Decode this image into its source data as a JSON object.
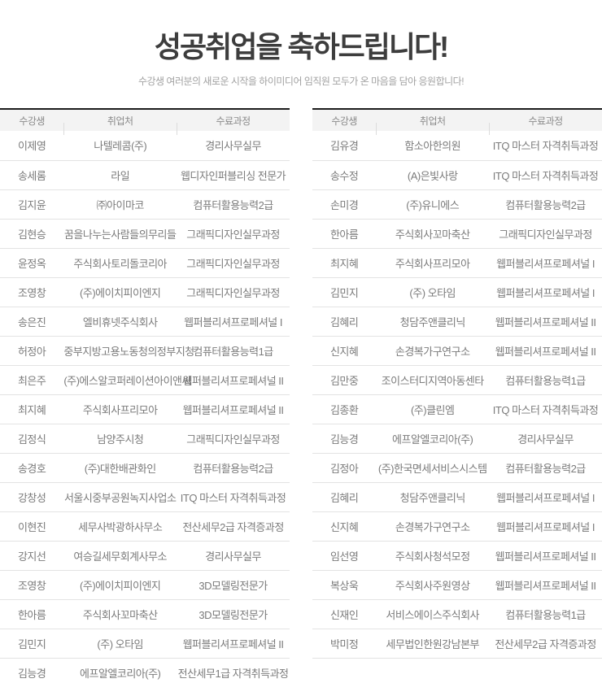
{
  "header": {
    "title": "성공취업을 축하드립니다!",
    "subtitle": "수강생 여러분의 새로운 시작을 하이미디어 임직원 모두가 온 마음을 담아 응원합니다!"
  },
  "columns": [
    "수강생",
    "취업처",
    "수료과정"
  ],
  "left_table": {
    "rows": [
      [
        "이제영",
        "나텔레콤(주)",
        "경리사무실무"
      ],
      [
        "송세롬",
        "라일",
        "웹디자인퍼블리싱 전문가"
      ],
      [
        "김지윤",
        "㈜아이마코",
        "컴퓨터활용능력2급"
      ],
      [
        "김현승",
        "꿈을나누는사람들의무리들",
        "그래픽디자인실무과정"
      ],
      [
        "윤정옥",
        "주식회사토리돌코리아",
        "그래픽디자인실무과정"
      ],
      [
        "조영창",
        "(주)에이치피이엔지",
        "그래픽디자인실무과정"
      ],
      [
        "송은진",
        "엘비휴넷주식회사",
        "웹퍼블리셔프로페셔널 I"
      ],
      [
        "허정아",
        "중부지방고용노동청의정부지청",
        "컴퓨터활용능력1급"
      ],
      [
        "최은주",
        "(주)에스알코퍼레이션아이앤씨",
        "웹퍼블리셔프로페셔널 II"
      ],
      [
        "최지혜",
        "주식회사프리모아",
        "웹퍼블리셔프로페셔널 II"
      ],
      [
        "김정식",
        "남양주시청",
        "그래픽디자인실무과정"
      ],
      [
        "송경호",
        "(주)대한배관화인",
        "컴퓨터활용능력2급"
      ],
      [
        "강창성",
        "서울시중부공원녹지사업소",
        "ITQ 마스터 자격취득과정"
      ],
      [
        "이현진",
        "세무사박광하사무소",
        "전산세무2급 자격증과정"
      ],
      [
        "강지선",
        "여승길세무회계사무소",
        "경리사무실무"
      ],
      [
        "조영창",
        "(주)에이치피이엔지",
        "3D모델링전문가"
      ],
      [
        "한아름",
        "주식회사꼬마축산",
        "3D모델링전문가"
      ],
      [
        "김민지",
        "(주) 오타임",
        "웹퍼블리셔프로페셔널 II"
      ],
      [
        "김능경",
        "에프알엘코리아(주)",
        "전산세무1급 자격취득과정"
      ]
    ]
  },
  "right_table": {
    "rows": [
      [
        "김유경",
        "함소아한의원",
        "ITQ 마스터 자격취득과정"
      ],
      [
        "송수정",
        "(A)은빛사랑",
        "ITQ 마스터 자격취득과정"
      ],
      [
        "손미경",
        "(주)유니에스",
        "컴퓨터활용능력2급"
      ],
      [
        "한아름",
        "주식회사꼬마축산",
        "그래픽디자인실무과정"
      ],
      [
        "최지혜",
        "주식회사프리모아",
        "웹퍼블리셔프로페셔널 I"
      ],
      [
        "김민지",
        "(주) 오타임",
        "웹퍼블리셔프로페셔널 I"
      ],
      [
        "김혜리",
        "청담주앤클리닉",
        "웹퍼블리셔프로페셔널 II"
      ],
      [
        "신지혜",
        "손경복가구연구소",
        "웹퍼블리셔프로페셔널 II"
      ],
      [
        "김만중",
        "조이스터디지역아동센타",
        "컴퓨터활용능력1급"
      ],
      [
        "김종환",
        "(주)클린엠",
        "ITQ 마스터 자격취득과정"
      ],
      [
        "김능경",
        "에프알엘코리아(주)",
        "경리사무실무"
      ],
      [
        "김정아",
        "(주)한국면세서비스시스템",
        "컴퓨터활용능력2급"
      ],
      [
        "김혜리",
        "청담주앤클리닉",
        "웹퍼블리셔프로페셔널 I"
      ],
      [
        "신지혜",
        "손경복가구연구소",
        "웹퍼블리셔프로페셔널 I"
      ],
      [
        "임선영",
        "주식회사청석모정",
        "웹퍼블리셔프로페셔널 II"
      ],
      [
        "복상욱",
        "주식회사주원영상",
        "웹퍼블리셔프로페셔널 II"
      ],
      [
        "신재인",
        "서비스에이스주식회사",
        "컴퓨터활용능력1급"
      ],
      [
        "박미정",
        "세무법인한원강남본부",
        "전산세무2급 자격증과정"
      ],
      [
        "",
        "",
        ""
      ]
    ]
  },
  "colors": {
    "title_text": "#3d3d3d",
    "subtitle_text": "#a2a2a2",
    "table_top_border": "#1c1c1c",
    "table_header_bg": "#f3f3f3",
    "table_header_text": "#8a8a8a",
    "row_border": "#e3e3e3",
    "cell_text": "#7b7b7b"
  }
}
